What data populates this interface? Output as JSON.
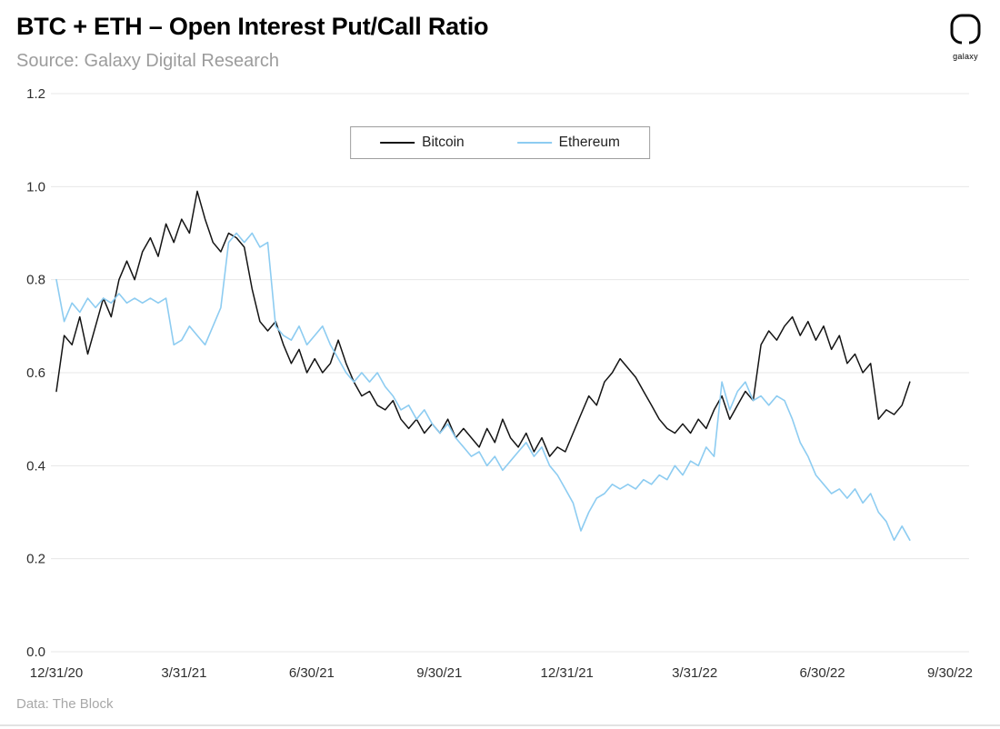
{
  "header": {
    "title": "BTC + ETH – Open Interest Put/Call Ratio",
    "source": "Source: Galaxy Digital Research",
    "logo_text": "galaxy"
  },
  "footer": {
    "data_note": "Data: The Block"
  },
  "chart_data": {
    "type": "line",
    "title": "BTC + ETH – Open Interest Put/Call Ratio",
    "xlabel": "",
    "ylabel": "",
    "grid": "horizontal",
    "legend_position": "top-center",
    "ylim": [
      0,
      1.2
    ],
    "y_ticks": [
      0.0,
      0.2,
      0.4,
      0.6,
      0.8,
      1.0,
      1.2
    ],
    "x_tick_labels": [
      "12/31/20",
      "3/31/21",
      "6/30/21",
      "9/30/21",
      "12/31/21",
      "3/31/22",
      "6/30/22",
      "9/30/22"
    ],
    "x_domain_fraction_end": 0.955,
    "colors": {
      "grid": "#e7e7e7",
      "tick_text": "#2e2e2e"
    },
    "series": [
      {
        "name": "Bitcoin",
        "color": "#141414",
        "width": 1.5,
        "values": [
          0.56,
          0.68,
          0.66,
          0.72,
          0.64,
          0.7,
          0.76,
          0.72,
          0.8,
          0.84,
          0.8,
          0.86,
          0.89,
          0.85,
          0.92,
          0.88,
          0.93,
          0.9,
          0.99,
          0.93,
          0.88,
          0.86,
          0.9,
          0.89,
          0.87,
          0.78,
          0.71,
          0.69,
          0.71,
          0.66,
          0.62,
          0.65,
          0.6,
          0.63,
          0.6,
          0.62,
          0.67,
          0.62,
          0.58,
          0.55,
          0.56,
          0.53,
          0.52,
          0.54,
          0.5,
          0.48,
          0.5,
          0.47,
          0.49,
          0.47,
          0.5,
          0.46,
          0.48,
          0.46,
          0.44,
          0.48,
          0.45,
          0.5,
          0.46,
          0.44,
          0.47,
          0.43,
          0.46,
          0.42,
          0.44,
          0.43,
          0.47,
          0.51,
          0.55,
          0.53,
          0.58,
          0.6,
          0.63,
          0.61,
          0.59,
          0.56,
          0.53,
          0.5,
          0.48,
          0.47,
          0.49,
          0.47,
          0.5,
          0.48,
          0.52,
          0.55,
          0.5,
          0.53,
          0.56,
          0.54,
          0.66,
          0.69,
          0.67,
          0.7,
          0.72,
          0.68,
          0.71,
          0.67,
          0.7,
          0.65,
          0.68,
          0.62,
          0.64,
          0.6,
          0.62,
          0.5,
          0.52,
          0.51,
          0.53,
          0.58
        ]
      },
      {
        "name": "Ethereum",
        "color": "#8dccf1",
        "width": 1.6,
        "values": [
          0.8,
          0.71,
          0.75,
          0.73,
          0.76,
          0.74,
          0.76,
          0.75,
          0.77,
          0.75,
          0.76,
          0.75,
          0.76,
          0.75,
          0.76,
          0.66,
          0.67,
          0.7,
          0.68,
          0.66,
          0.7,
          0.74,
          0.88,
          0.9,
          0.88,
          0.9,
          0.87,
          0.88,
          0.7,
          0.68,
          0.67,
          0.7,
          0.66,
          0.68,
          0.7,
          0.66,
          0.63,
          0.6,
          0.58,
          0.6,
          0.58,
          0.6,
          0.57,
          0.55,
          0.52,
          0.53,
          0.5,
          0.52,
          0.49,
          0.47,
          0.49,
          0.46,
          0.44,
          0.42,
          0.43,
          0.4,
          0.42,
          0.39,
          0.41,
          0.43,
          0.45,
          0.42,
          0.44,
          0.4,
          0.38,
          0.35,
          0.32,
          0.26,
          0.3,
          0.33,
          0.34,
          0.36,
          0.35,
          0.36,
          0.35,
          0.37,
          0.36,
          0.38,
          0.37,
          0.4,
          0.38,
          0.41,
          0.4,
          0.44,
          0.42,
          0.58,
          0.52,
          0.56,
          0.58,
          0.54,
          0.55,
          0.53,
          0.55,
          0.54,
          0.5,
          0.45,
          0.42,
          0.38,
          0.36,
          0.34,
          0.35,
          0.33,
          0.35,
          0.32,
          0.34,
          0.3,
          0.28,
          0.24,
          0.27,
          0.24
        ]
      }
    ]
  }
}
